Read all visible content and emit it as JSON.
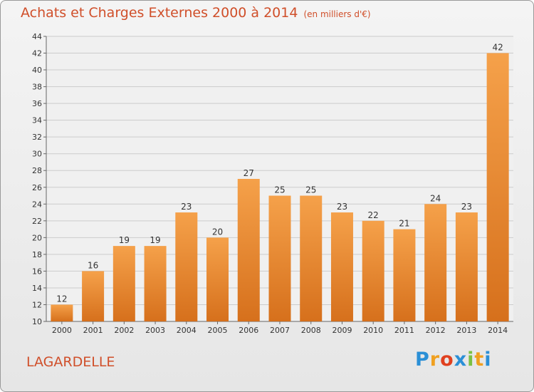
{
  "header": {
    "title": "Achats et Charges Externes 2000 à 2014",
    "subtitle": "(en milliers d'€)"
  },
  "footer": {
    "town": "LAGARDELLE",
    "logo_letters": [
      "P",
      "r",
      "o",
      "x",
      "i",
      "t",
      "i"
    ],
    "logo_colors": [
      "#2a8fd6",
      "#f0a020",
      "#e0401f",
      "#2a8fd6",
      "#7ac142",
      "#f0a020",
      "#2a8fd6"
    ]
  },
  "colors": {
    "bar_top": "#f5a14a",
    "bar_bottom": "#d6701c",
    "accent_text": "#d04f2a",
    "grid": "#cccccc",
    "axis_text": "#333333"
  },
  "chart_data": {
    "type": "bar",
    "categories": [
      "2000",
      "2001",
      "2002",
      "2003",
      "2004",
      "2005",
      "2006",
      "2007",
      "2008",
      "2009",
      "2010",
      "2011",
      "2012",
      "2013",
      "2014"
    ],
    "values": [
      12,
      16,
      19,
      19,
      23,
      20,
      27,
      25,
      25,
      23,
      22,
      21,
      24,
      23,
      42
    ],
    "title": "Achats et Charges Externes 2000 à 2014",
    "ylim": [
      10,
      44
    ],
    "yticks": [
      10,
      12,
      14,
      16,
      18,
      20,
      22,
      24,
      26,
      28,
      30,
      32,
      34,
      36,
      38,
      40,
      42,
      44
    ],
    "grid": true,
    "legend": "none"
  }
}
